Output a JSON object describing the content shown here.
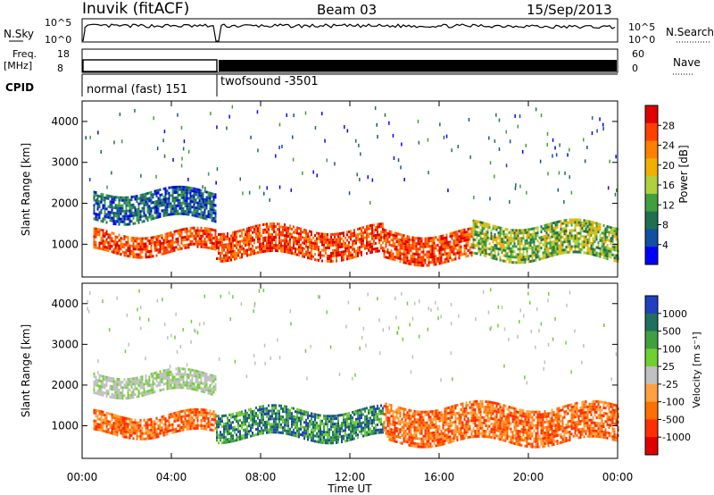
{
  "header": {
    "title": "Inuvik (fitACF)",
    "beam": "Beam 03",
    "date": "15/Sep/2013"
  },
  "panels_top": {
    "nsky_label": "N.Sky",
    "nsky_ticks": [
      "10^5",
      "10^0"
    ],
    "nsearch_label": "N.Search",
    "nsearch_ticks": [
      "10^5",
      "10^0"
    ],
    "freq_label_1": "Freq.",
    "freq_label_2": "[MHz]",
    "freq_ticks": [
      "18",
      "8"
    ],
    "nave_label": "Nave",
    "nave_ticks": [
      "60",
      "0"
    ],
    "cpid_label": "CPID",
    "cpid_modes": [
      "normal (fast) 151",
      "twofsound -3501"
    ]
  },
  "chart_data": [
    {
      "type": "heatmap",
      "title": "",
      "xlabel": "",
      "ylabel": "Slant Range [km]",
      "x_ticks": [
        "00:00",
        "04:00",
        "08:00",
        "12:00",
        "16:00",
        "20:00",
        "00:00"
      ],
      "y_ticks": [
        1000,
        2000,
        3000,
        4000
      ],
      "ylim": [
        200,
        4500
      ],
      "colorbar": {
        "label": "Power [dB]",
        "ticks": [
          "28",
          "24",
          "20",
          "16",
          "12",
          "8",
          "4"
        ],
        "colors": [
          "#e00000",
          "#ff4000",
          "#ff8000",
          "#f0b000",
          "#b0d040",
          "#40a040",
          "#207050",
          "#1050a0",
          "#0000ff"
        ]
      },
      "echo_bands": [
        {
          "t_start": 0.5,
          "t_end": 6.0,
          "range_low": 800,
          "range_high": 1300,
          "level": "high"
        },
        {
          "t_start": 0.5,
          "t_end": 6.0,
          "range_low": 1600,
          "range_high": 2300,
          "level": "low"
        },
        {
          "t_start": 6.0,
          "t_end": 13.5,
          "range_low": 700,
          "range_high": 1400,
          "level": "high"
        },
        {
          "t_start": 13.5,
          "t_end": 17.5,
          "range_low": 600,
          "range_high": 1300,
          "level": "high"
        },
        {
          "t_start": 17.5,
          "t_end": 24.0,
          "range_low": 700,
          "range_high": 1500,
          "level": "mid"
        }
      ]
    },
    {
      "type": "heatmap",
      "title": "",
      "xlabel": "Time UT",
      "ylabel": "Slant Range [km]",
      "x_ticks": [
        "00:00",
        "04:00",
        "08:00",
        "12:00",
        "16:00",
        "20:00",
        "00:00"
      ],
      "y_ticks": [
        1000,
        2000,
        3000,
        4000
      ],
      "ylim": [
        200,
        4500
      ],
      "colorbar": {
        "label": "Velocity [m s⁻¹]",
        "ticks": [
          "1000",
          "500",
          "100",
          "25",
          "-25",
          "-100",
          "-500",
          "-1000"
        ],
        "colors": [
          "#2040c0",
          "#207060",
          "#40a040",
          "#70d030",
          "#c0c0c0",
          "#ffa040",
          "#ff7000",
          "#ff3000",
          "#e00000"
        ]
      },
      "echo_bands": [
        {
          "t_start": 0.5,
          "t_end": 6.0,
          "range_low": 800,
          "range_high": 1300,
          "velocity": "orange"
        },
        {
          "t_start": 0.5,
          "t_end": 6.0,
          "range_low": 1800,
          "range_high": 2300,
          "velocity": "grey"
        },
        {
          "t_start": 6.0,
          "t_end": 13.5,
          "range_low": 700,
          "range_high": 1400,
          "velocity": "blue-green"
        },
        {
          "t_start": 13.5,
          "t_end": 24.0,
          "range_low": 600,
          "range_high": 1500,
          "velocity": "orange"
        }
      ]
    }
  ]
}
